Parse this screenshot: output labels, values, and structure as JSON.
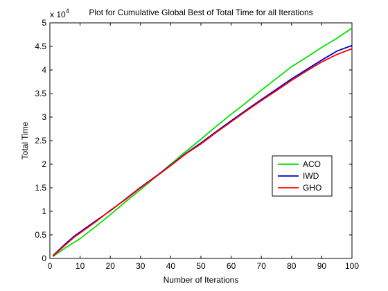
{
  "chart_data": {
    "type": "line",
    "title": "Plot for Cumulative Global Best of Total Time for all Iterations",
    "xlabel": "Number of Iterations",
    "ylabel": "Total Time",
    "y_exponent_label": "x 10",
    "y_exponent": "4",
    "xlim": [
      0,
      100
    ],
    "ylim": [
      0,
      50000
    ],
    "x_ticks": [
      "0",
      "10",
      "20",
      "30",
      "40",
      "50",
      "60",
      "70",
      "80",
      "90",
      "100"
    ],
    "y_ticks": [
      "0",
      "0.5",
      "1",
      "1.5",
      "2",
      "2.5",
      "3",
      "3.5",
      "4",
      "4.5",
      "5"
    ],
    "grid": false,
    "legend_position": "right",
    "x": [
      1,
      5,
      8,
      10,
      15,
      20,
      25,
      30,
      35,
      40,
      45,
      50,
      55,
      60,
      65,
      70,
      75,
      80,
      85,
      90,
      95,
      100
    ],
    "series": [
      {
        "name": "ACO",
        "color": "#00e000",
        "values": [
          400,
          2200,
          3400,
          4200,
          6700,
          9300,
          12000,
          14600,
          17300,
          20000,
          22700,
          25300,
          28000,
          30600,
          33100,
          35700,
          38200,
          40700,
          42700,
          44800,
          46700,
          48900
        ]
      },
      {
        "name": "IWD",
        "color": "#0000cc",
        "values": [
          600,
          3000,
          4700,
          5600,
          7900,
          10100,
          12600,
          15100,
          17400,
          19800,
          22300,
          24500,
          26900,
          29200,
          31500,
          33700,
          35900,
          38100,
          40100,
          42100,
          44000,
          45200
        ]
      },
      {
        "name": "GHO",
        "color": "#ff0000",
        "values": [
          500,
          2800,
          4500,
          5400,
          7700,
          10200,
          12500,
          15000,
          17300,
          19700,
          22200,
          24300,
          26700,
          29000,
          31300,
          33500,
          35600,
          37800,
          39800,
          41700,
          43300,
          44500
        ]
      }
    ]
  }
}
